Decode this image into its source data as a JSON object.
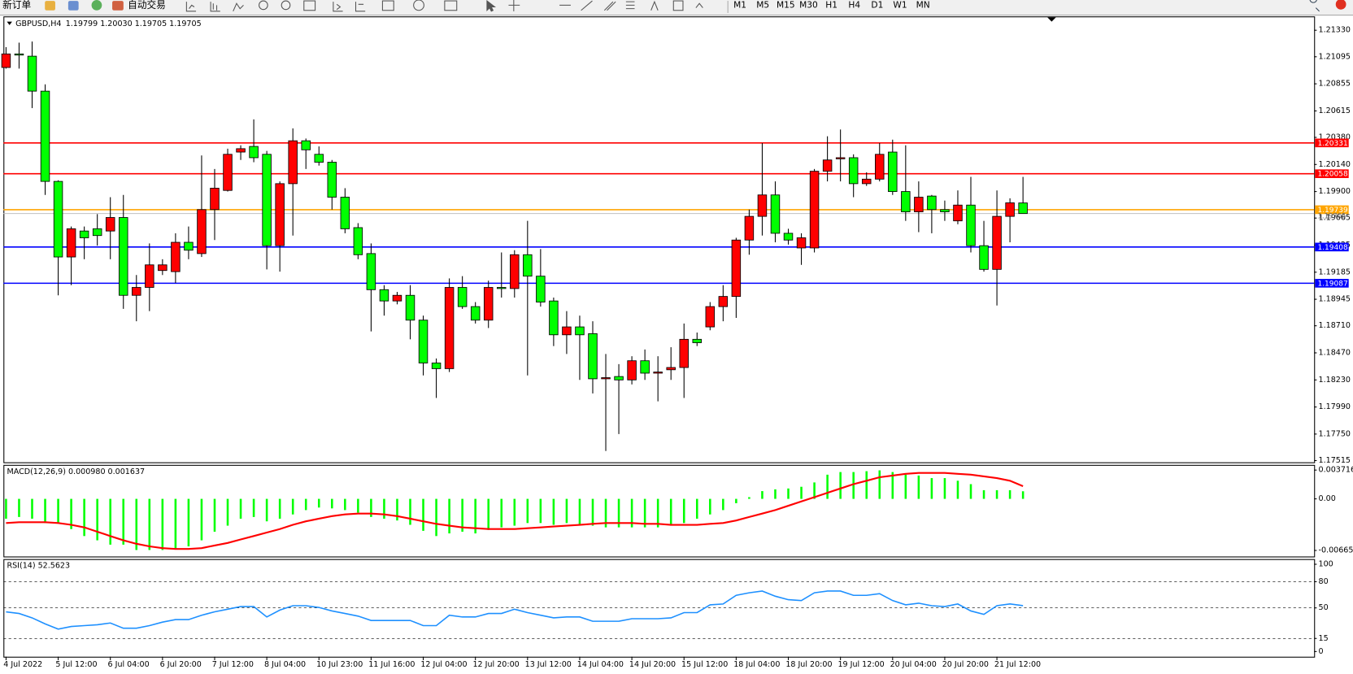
{
  "toolbar": {
    "new_order": "新订单",
    "auto_trading": "自动交易",
    "timeframes": [
      "M1",
      "M5",
      "M15",
      "M30",
      "H1",
      "H4",
      "D1",
      "W1",
      "MN"
    ]
  },
  "chart_data": [
    {
      "type": "candlestick",
      "title": "GBPUSD,H4",
      "subtitle": "1.19799 1.20030 1.19705 1.19705",
      "categories": [
        "4 Jul 2022",
        null,
        null,
        null,
        "5 Jul 12:00",
        null,
        null,
        null,
        "6 Jul 04:00",
        null,
        null,
        null,
        "6 Jul 20:00",
        null,
        null,
        null,
        "7 Jul 12:00",
        null,
        null,
        null,
        "8 Jul 04:00",
        null,
        null,
        null,
        "10 Jul 23:00",
        null,
        null,
        null,
        "11 Jul 16:00",
        null,
        null,
        null,
        "12 Jul 04:00",
        null,
        null,
        null,
        "12 Jul 20:00",
        null,
        null,
        null,
        "13 Jul 12:00",
        null,
        null,
        null,
        "14 Jul 04:00",
        null,
        null,
        null,
        "14 Jul 20:00",
        null,
        null,
        null,
        "15 Jul 12:00",
        null,
        null,
        null,
        "18 Jul 04:00",
        null,
        null,
        null,
        "18 Jul 20:00",
        null,
        null,
        null,
        "19 Jul 12:00",
        null,
        null,
        null,
        "20 Jul 04:00",
        null,
        null,
        null,
        "20 Jul 20:00",
        null,
        null,
        null,
        "21 Jul 12:00",
        null,
        null
      ],
      "open": [
        1.21,
        1.2112,
        1.211,
        1.2079,
        1.1999,
        1.1932,
        1.1955,
        1.1957,
        1.1955,
        1.1967,
        1.1898,
        1.1905,
        1.192,
        1.1919,
        1.1945,
        1.1935,
        1.1974,
        1.1991,
        1.2025,
        1.203,
        1.2023,
        1.1942,
        1.1997,
        1.2035,
        1.2023,
        1.2016,
        1.1985,
        1.1958,
        1.1935,
        1.1903,
        1.1893,
        1.1898,
        1.1876,
        1.1838,
        1.1833,
        1.1905,
        1.1888,
        1.1876,
        1.1905,
        1.1904,
        1.1934,
        1.1915,
        1.1893,
        1.1863,
        1.187,
        1.1864,
        1.1824,
        1.1826,
        1.1823,
        1.184,
        1.1829,
        1.1832,
        1.1834,
        1.1859,
        1.187,
        1.1888,
        1.1897,
        1.1947,
        1.1968,
        1.1987,
        1.1953,
        1.194,
        1.194,
        1.2008,
        1.2019,
        1.202,
        1.1997,
        1.2001,
        1.2025,
        1.199,
        1.1972,
        1.1986,
        1.1974,
        1.1964,
        1.1978,
        1.1942,
        1.1921,
        1.1968,
        1.19799
      ],
      "high": [
        1.2118,
        1.2122,
        1.2123,
        1.2085,
        1.2,
        1.1959,
        1.1959,
        1.197,
        1.1985,
        1.1987,
        1.1916,
        1.1944,
        1.193,
        1.1953,
        1.1959,
        1.2022,
        1.201,
        1.2028,
        1.2031,
        1.2054,
        1.2026,
        1.1999,
        1.2046,
        1.2037,
        1.203,
        1.2018,
        1.1993,
        1.1962,
        1.1944,
        1.1907,
        1.1901,
        1.1907,
        1.188,
        1.1842,
        1.1913,
        1.1915,
        1.1892,
        1.1911,
        1.1936,
        1.1938,
        1.1964,
        1.1939,
        1.1896,
        1.1884,
        1.188,
        1.1875,
        1.1846,
        1.1837,
        1.1844,
        1.185,
        1.1844,
        1.1852,
        1.1873,
        1.1865,
        1.1892,
        1.1907,
        1.1949,
        1.1974,
        1.2033,
        1.1999,
        1.1957,
        1.1953,
        1.201,
        1.2039,
        1.2045,
        1.2023,
        1.2007,
        1.2033,
        1.2036,
        1.2031,
        1.1999,
        1.1987,
        1.1982,
        1.1991,
        1.2003,
        1.1964,
        1.1991,
        1.1984,
        1.2003
      ],
      "low": [
        1.2099,
        1.2099,
        1.2064,
        1.1987,
        1.1898,
        1.1907,
        1.193,
        1.1942,
        1.193,
        1.1886,
        1.1875,
        1.1884,
        1.1916,
        1.1909,
        1.193,
        1.1932,
        1.1947,
        1.199,
        1.2018,
        1.2016,
        1.1921,
        1.1919,
        1.1951,
        1.201,
        1.2013,
        1.1974,
        1.1953,
        1.193,
        1.1866,
        1.188,
        1.189,
        1.1859,
        1.1827,
        1.1807,
        1.183,
        1.1886,
        1.1873,
        1.1869,
        1.1896,
        1.1896,
        1.1827,
        1.1888,
        1.1853,
        1.1846,
        1.1823,
        1.1811,
        1.176,
        1.1775,
        1.1819,
        1.1823,
        1.1804,
        1.1823,
        1.1807,
        1.1853,
        1.1867,
        1.1875,
        1.1878,
        1.1934,
        1.1951,
        1.1945,
        1.1943,
        1.1925,
        1.1936,
        1.1999,
        1.1999,
        1.1985,
        1.1995,
        1.1999,
        1.1987,
        1.1964,
        1.1954,
        1.1953,
        1.1964,
        1.1961,
        1.1936,
        1.1919,
        1.1889,
        1.1945,
        1.19705
      ],
      "close": [
        1.2112,
        1.2111,
        1.2079,
        1.1999,
        1.1932,
        1.1957,
        1.1949,
        1.1951,
        1.1967,
        1.1898,
        1.1905,
        1.1925,
        1.1925,
        1.1945,
        1.1938,
        1.1974,
        1.1993,
        1.2023,
        1.2028,
        1.202,
        1.1942,
        1.1997,
        1.2035,
        1.2027,
        1.2016,
        1.1985,
        1.1957,
        1.1934,
        1.1903,
        1.1893,
        1.1898,
        1.1876,
        1.1838,
        1.1833,
        1.1905,
        1.1888,
        1.1876,
        1.1905,
        1.1904,
        1.1934,
        1.1915,
        1.1892,
        1.1863,
        1.187,
        1.1863,
        1.1824,
        1.1825,
        1.1823,
        1.184,
        1.1829,
        1.183,
        1.1834,
        1.1859,
        1.1856,
        1.1888,
        1.1897,
        1.1947,
        1.1968,
        1.1987,
        1.1953,
        1.1947,
        1.1949,
        1.2008,
        1.2018,
        1.202,
        1.1997,
        1.2001,
        1.2023,
        1.199,
        1.1972,
        1.1985,
        1.1974,
        1.1972,
        1.1978,
        1.1942,
        1.1921,
        1.1968,
        1.198,
        1.19705
      ],
      "up_color": "#ff0000",
      "down_color": "#00ff00",
      "ylim": [
        1.17515,
        1.2133
      ],
      "yticks": [
        {
          "value": 1.2133,
          "label": "1.21330"
        },
        1.21095,
        1.20855,
        1.20615,
        {
          "value": 1.2038,
          "label": "1.20380"
        },
        {
          "value": 1.2014,
          "label": "1.20140"
        },
        {
          "value": 1.199,
          "label": "1.19900"
        },
        1.19665,
        1.19425,
        1.19185,
        1.18945,
        {
          "value": 1.1871,
          "label": "1.18710"
        },
        {
          "value": 1.1847,
          "label": "1.18470"
        },
        {
          "value": 1.1823,
          "label": "1.18230"
        },
        {
          "value": 1.1799,
          "label": "1.17990"
        },
        {
          "value": 1.1775,
          "label": "1.17750"
        },
        1.17515
      ],
      "levels": [
        {
          "value": 1.20331,
          "color": "#ff0000"
        },
        {
          "value": 1.20058,
          "color": "#ff0000"
        },
        {
          "value": 1.19739,
          "color": "#ffa500"
        },
        {
          "value": 1.19408,
          "color": "#0000ff"
        },
        {
          "value": 1.19087,
          "color": "#0000ff"
        }
      ],
      "bid": {
        "value": 1.19705,
        "color": "#c0c0c0"
      }
    },
    {
      "type": "macd",
      "title": "MACD(12,26,9) 0.000980 0.001637",
      "histogram": {
        "color": "#00ff00",
        "values": [
          -0.00256,
          -0.00234,
          -0.00256,
          -0.00312,
          -0.00312,
          -0.0039,
          -0.0048,
          -0.00535,
          -0.00591,
          -0.00591,
          -0.0066,
          -0.0066,
          -0.0066,
          -0.00647,
          -0.00613,
          -0.00535,
          -0.00424,
          -0.00346,
          -0.00256,
          -0.00234,
          -0.0029,
          -0.00256,
          -0.00201,
          -0.00145,
          -0.00112,
          -0.00123,
          -0.00145,
          -0.00178,
          -0.00234,
          -0.00256,
          -0.00279,
          -0.00335,
          -0.00413,
          -0.0048,
          -0.00446,
          -0.00424,
          -0.00446,
          -0.00401,
          -0.00368,
          -0.00346,
          -0.00312,
          -0.00312,
          -0.00335,
          -0.00312,
          -0.00335,
          -0.00346,
          -0.00368,
          -0.00368,
          -0.00368,
          -0.00368,
          -0.00368,
          -0.00346,
          -0.00312,
          -0.00256,
          -0.00201,
          -0.00145,
          -0.00056,
          0.00022,
          0.001,
          0.00123,
          0.00134,
          0.00156,
          0.00212,
          0.00312,
          0.00346,
          0.00346,
          0.00357,
          0.00368,
          0.00346,
          0.00312,
          0.00301,
          0.00268,
          0.00268,
          0.00234,
          0.0019,
          0.00112,
          0.00112,
          0.00112,
          0.00098
        ]
      },
      "signal": {
        "color": "#ff0000",
        "values": [
          -0.00312,
          -0.00301,
          -0.00301,
          -0.00301,
          -0.00312,
          -0.00335,
          -0.00368,
          -0.00424,
          -0.0048,
          -0.00535,
          -0.0058,
          -0.00613,
          -0.00636,
          -0.00647,
          -0.00647,
          -0.00636,
          -0.00602,
          -0.00569,
          -0.00524,
          -0.0048,
          -0.00435,
          -0.0039,
          -0.00335,
          -0.0029,
          -0.00256,
          -0.00223,
          -0.00201,
          -0.0019,
          -0.0019,
          -0.00201,
          -0.00223,
          -0.00256,
          -0.0029,
          -0.00323,
          -0.00346,
          -0.00368,
          -0.00379,
          -0.0039,
          -0.0039,
          -0.0039,
          -0.00379,
          -0.00368,
          -0.00357,
          -0.00346,
          -0.00335,
          -0.00323,
          -0.00312,
          -0.00312,
          -0.00312,
          -0.00323,
          -0.00323,
          -0.00335,
          -0.00335,
          -0.00335,
          -0.00323,
          -0.00312,
          -0.00279,
          -0.00234,
          -0.0019,
          -0.00145,
          -0.00089,
          -0.00033,
          0.00022,
          0.00078,
          0.00134,
          0.0019,
          0.00234,
          0.00279,
          0.00301,
          0.00323,
          0.00335,
          0.00335,
          0.00335,
          0.00323,
          0.00312,
          0.0029,
          0.00268,
          0.00234,
          0.001637
        ]
      },
      "ylim": [
        -0.006657,
        0.003716
      ],
      "yticks": [
        -0.006657,
        {
          "value": 0,
          "label": "0.00"
        },
        0.003716
      ]
    },
    {
      "type": "rsi",
      "title": "RSI(14) 52.5623",
      "color": "#1e90ff",
      "values": [
        45.5,
        43.6,
        38.6,
        31.7,
        25.7,
        28.7,
        29.7,
        30.7,
        32.7,
        26.7,
        26.7,
        29.7,
        33.7,
        36.6,
        36.6,
        41.6,
        45.5,
        48.5,
        51.5,
        51.5,
        39.6,
        47.5,
        52.5,
        52.5,
        50.5,
        46.5,
        43.6,
        40.6,
        35.6,
        35.6,
        35.6,
        35.6,
        29.7,
        29.7,
        41.6,
        39.6,
        39.6,
        43.6,
        43.6,
        48.5,
        44.6,
        41.6,
        38.6,
        39.6,
        39.6,
        34.7,
        34.7,
        34.7,
        37.6,
        37.6,
        37.6,
        38.6,
        44.6,
        44.6,
        53.5,
        54.5,
        64.4,
        67.3,
        69.3,
        63.4,
        59.4,
        58.4,
        67.3,
        69.3,
        69.3,
        64.4,
        64.4,
        66.3,
        58.4,
        53.5,
        55.4,
        52.5,
        51.5,
        54.5,
        46.5,
        42.6,
        52.5,
        54.5,
        52.5623
      ],
      "ylim": [
        0,
        100
      ],
      "yticks": [
        0,
        15,
        50,
        80,
        100
      ]
    }
  ]
}
